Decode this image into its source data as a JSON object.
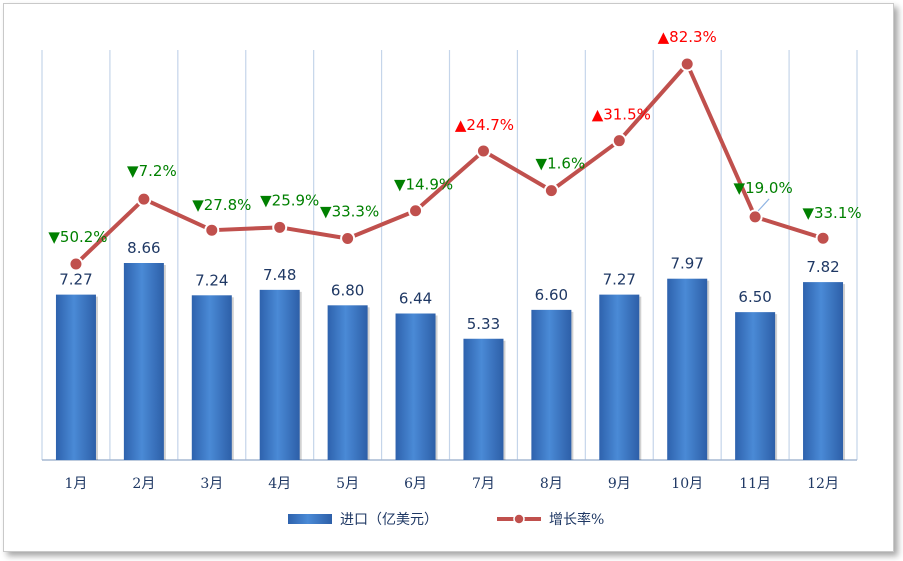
{
  "chart_data": {
    "type": "bar",
    "categories": [
      "1月",
      "2月",
      "3月",
      "4月",
      "5月",
      "6月",
      "7月",
      "8月",
      "9月",
      "10月",
      "11月",
      "12月"
    ],
    "series": [
      {
        "name": "进口（亿美元）",
        "type": "bar",
        "values": [
          7.27,
          8.66,
          7.24,
          7.48,
          6.8,
          6.44,
          5.33,
          6.6,
          7.27,
          7.97,
          6.5,
          7.82
        ],
        "labels": [
          "7.27",
          "8.66",
          "7.24",
          "7.48",
          "6.80",
          "6.44",
          "5.33",
          "6.60",
          "7.27",
          "7.97",
          "6.50",
          "7.82"
        ],
        "color": "#3a7bc8"
      },
      {
        "name": "增长率%",
        "type": "line",
        "values": [
          -50.2,
          -7.2,
          -27.8,
          -25.9,
          -33.3,
          -14.9,
          24.7,
          -1.6,
          31.5,
          82.3,
          -19.0,
          -33.1
        ],
        "labels": [
          "▼50.2%",
          "▼7.2%",
          "▼27.8%",
          "▼25.9%",
          "▼33.3%",
          "▼14.9%",
          "▲24.7%",
          "▼1.6%",
          "▲31.5%",
          "▲82.3%",
          "▼19.0%",
          "▼33.1%"
        ],
        "color": "#c0504d"
      }
    ],
    "colors": {
      "up": "#ff0000",
      "down": "#008000",
      "tick_text": "#1f3864",
      "grid": "#c5d5ea"
    },
    "grid": "vertical",
    "legend": "bottom"
  }
}
